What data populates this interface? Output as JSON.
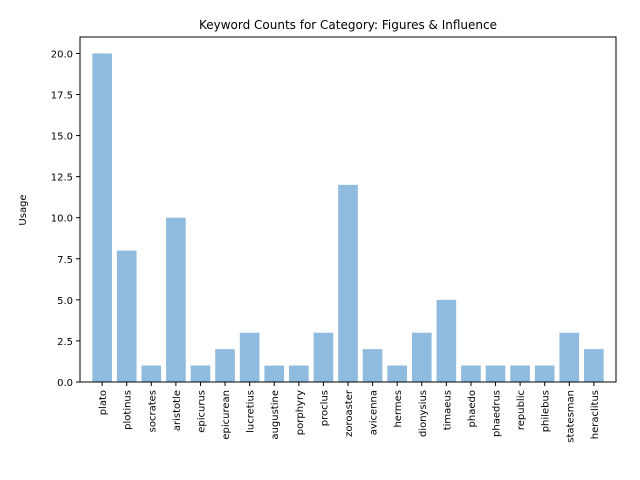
{
  "chart_data": {
    "type": "bar",
    "title": "Keyword Counts for Category: Figures & Influence",
    "xlabel": "",
    "ylabel": "Usage",
    "ylim": [
      0,
      21
    ],
    "yticks": [
      "0.0",
      "2.5",
      "5.0",
      "7.5",
      "10.0",
      "12.5",
      "15.0",
      "17.5",
      "20.0"
    ],
    "grid": false,
    "bar_color": "#8fbbdf",
    "categories": [
      "plato",
      "plotinus",
      "socrates",
      "aristotle",
      "epicurus",
      "epicurean",
      "lucretius",
      "augustine",
      "porphyry",
      "proclus",
      "zoroaster",
      "avicenna",
      "hermes",
      "dionysius",
      "timaeus",
      "phaedo",
      "phaedrus",
      "republic",
      "philebus",
      "statesman",
      "heraclitus"
    ],
    "values": [
      20,
      8,
      1,
      10,
      1,
      2,
      3,
      1,
      1,
      3,
      12,
      2,
      1,
      3,
      5,
      1,
      1,
      1,
      1,
      3,
      2
    ]
  }
}
